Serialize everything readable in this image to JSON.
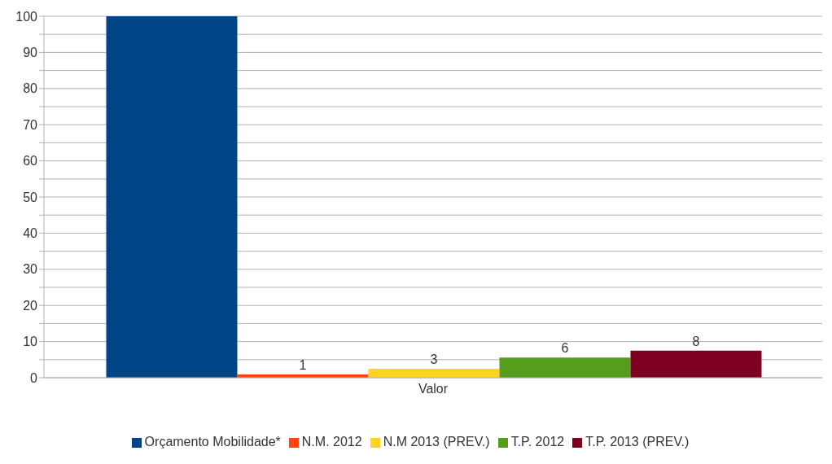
{
  "chart_data": {
    "type": "bar",
    "categories": [
      "Valor"
    ],
    "series": [
      {
        "name": "Orçamento Mobilidade*",
        "color": "#004586",
        "values": [
          100
        ],
        "value_labels": [
          null
        ]
      },
      {
        "name": "N.M. 2012",
        "color": "#ff420e",
        "values": [
          0.9
        ],
        "value_labels": [
          "1"
        ]
      },
      {
        "name": "N.M 2013 (PREV.)",
        "color": "#ffd320",
        "values": [
          2.5
        ],
        "value_labels": [
          "3"
        ]
      },
      {
        "name": "T.P. 2012",
        "color": "#579d1c",
        "values": [
          5.6
        ],
        "value_labels": [
          "6"
        ]
      },
      {
        "name": "T.P. 2013 (PREV.)",
        "color": "#7e0021",
        "values": [
          7.5
        ],
        "value_labels": [
          "8"
        ]
      }
    ],
    "ylim": [
      0,
      100
    ],
    "yticks": [
      0,
      {
        "value": 5,
        "label": null
      },
      10,
      {
        "value": 15,
        "label": null
      },
      20,
      {
        "value": 25,
        "label": null
      },
      30,
      {
        "value": 35,
        "label": null
      },
      40,
      {
        "value": 45,
        "label": null
      },
      50,
      {
        "value": 55,
        "label": null
      },
      60,
      {
        "value": 65,
        "label": null
      },
      70,
      {
        "value": 75,
        "label": null
      },
      80,
      {
        "value": 85,
        "label": null
      },
      90,
      {
        "value": 95,
        "label": null
      },
      100
    ],
    "grid": "y",
    "legend": "bottom"
  }
}
